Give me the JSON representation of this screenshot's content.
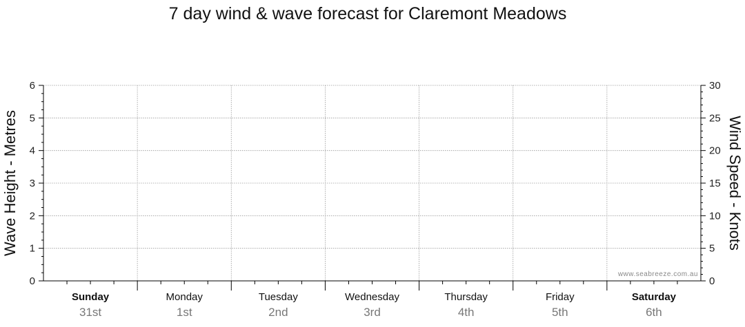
{
  "chart_data": {
    "type": "line",
    "title": "7 day wind & wave forecast for Claremont Meadows",
    "ylabel_left": "Wave Height - Metres",
    "ylabel_right": "Wind Speed - Knots",
    "ylim_left": [
      0,
      6
    ],
    "ylim_right": [
      0,
      30
    ],
    "yticks_left": [
      "0",
      "1",
      "2",
      "3",
      "4",
      "5",
      "6"
    ],
    "yticks_right": [
      "0",
      "5",
      "10",
      "15",
      "20",
      "25",
      "30"
    ],
    "grid": true,
    "days": [
      {
        "name": "Sunday",
        "date": "31st",
        "bold": true
      },
      {
        "name": "Monday",
        "date": "1st",
        "bold": false
      },
      {
        "name": "Tuesday",
        "date": "2nd",
        "bold": false
      },
      {
        "name": "Wednesday",
        "date": "3rd",
        "bold": false
      },
      {
        "name": "Thursday",
        "date": "4th",
        "bold": false
      },
      {
        "name": "Friday",
        "date": "5th",
        "bold": false
      },
      {
        "name": "Saturday",
        "date": "6th",
        "bold": true
      }
    ],
    "series": []
  },
  "watermark": "www.seabreeze.com.au",
  "colors": {
    "axis": "#000000",
    "grid": "#999999",
    "date_text": "#777777"
  }
}
